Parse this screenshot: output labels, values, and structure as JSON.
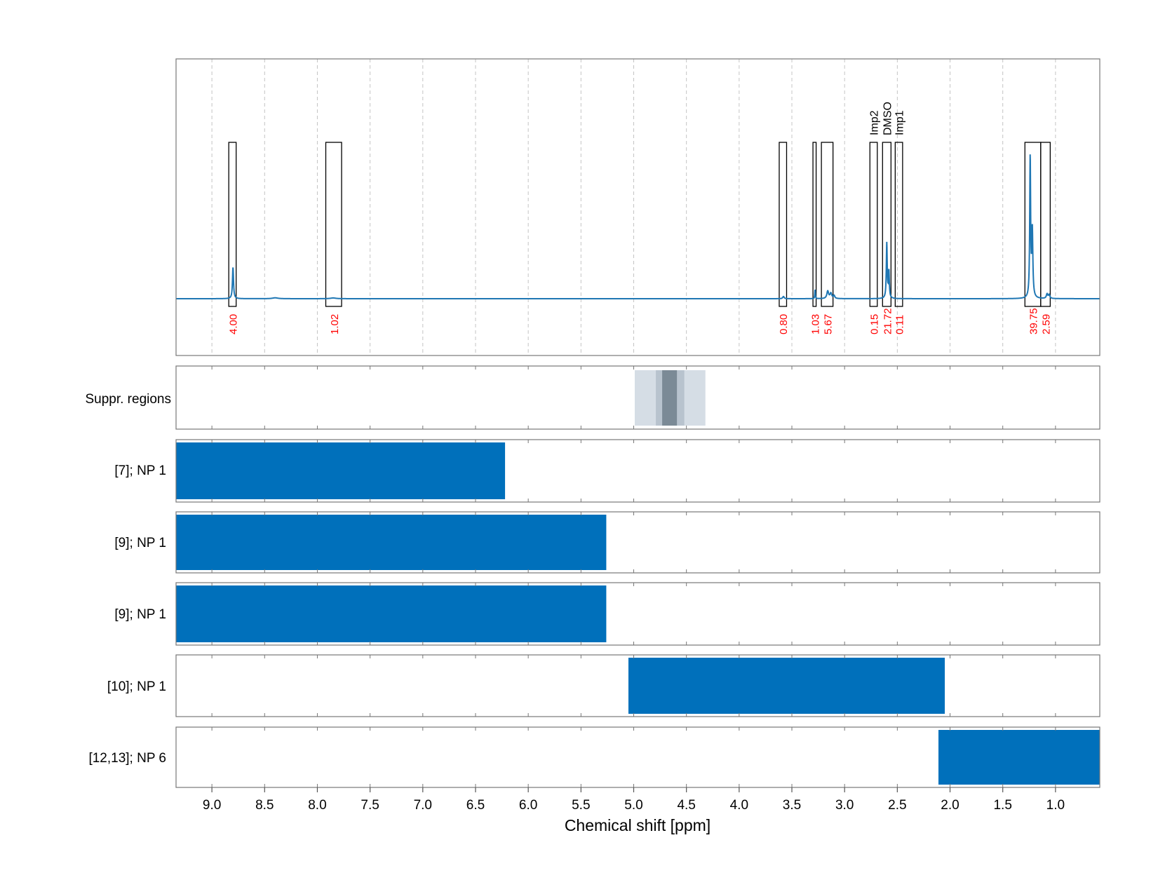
{
  "chart_data": {
    "type": "line",
    "xlabel": "Chemical shift [ppm]",
    "x_axis": {
      "reversed": true,
      "xlim": [
        9.34,
        0.58
      ],
      "ticks": [
        9.0,
        8.5,
        8.0,
        7.5,
        7.0,
        6.5,
        6.0,
        5.5,
        5.0,
        4.5,
        4.0,
        3.5,
        3.0,
        2.5,
        2.0,
        1.5,
        1.0
      ],
      "tick_labels": [
        "9.0",
        "8.5",
        "8.0",
        "7.5",
        "7.0",
        "6.5",
        "6.0",
        "5.5",
        "5.0",
        "4.5",
        "4.0",
        "3.5",
        "3.0",
        "2.5",
        "2.0",
        "1.5",
        "1.0"
      ]
    },
    "spectrum": {
      "color": "#1f77b4",
      "grid": "vertical dashed",
      "peaks": [
        {
          "x": 8.8,
          "height": 0.21,
          "width": 0.006
        },
        {
          "x": 8.4,
          "height": 0.006,
          "width": 0.03
        },
        {
          "x": 7.85,
          "height": 0.005,
          "width": 0.03
        },
        {
          "x": 3.58,
          "height": 0.015,
          "width": 0.008
        },
        {
          "x": 3.28,
          "height": 0.06,
          "width": 0.003
        },
        {
          "x": 3.16,
          "height": 0.05,
          "width": 0.01
        },
        {
          "x": 3.13,
          "height": 0.035,
          "width": 0.01
        },
        {
          "x": 3.1,
          "height": 0.02,
          "width": 0.008
        },
        {
          "x": 2.6,
          "height": 0.37,
          "width": 0.005
        },
        {
          "x": 2.58,
          "height": 0.18,
          "width": 0.005
        },
        {
          "x": 1.24,
          "height": 0.94,
          "width": 0.005
        },
        {
          "x": 1.22,
          "height": 0.45,
          "width": 0.006
        },
        {
          "x": 1.08,
          "height": 0.03,
          "width": 0.008
        },
        {
          "x": 1.06,
          "height": 0.025,
          "width": 0.008
        }
      ],
      "integration_regions": [
        {
          "from": 8.84,
          "to": 8.77,
          "value": "4.00",
          "label": ""
        },
        {
          "from": 7.92,
          "to": 7.77,
          "value": "1.02",
          "label": ""
        },
        {
          "from": 3.62,
          "to": 3.55,
          "value": "0.80",
          "label": ""
        },
        {
          "from": 3.3,
          "to": 3.27,
          "value": "1.03",
          "label": ""
        },
        {
          "from": 3.22,
          "to": 3.11,
          "value": "5.67",
          "label": ""
        },
        {
          "from": 2.76,
          "to": 2.69,
          "value": "0.15",
          "label": "Imp2"
        },
        {
          "from": 2.64,
          "to": 2.56,
          "value": "21.72",
          "label": "DMSO"
        },
        {
          "from": 2.52,
          "to": 2.45,
          "value": "0.11",
          "label": "Imp1"
        },
        {
          "from": 1.29,
          "to": 1.14,
          "value": "39.75",
          "label": ""
        },
        {
          "from": 1.14,
          "to": 1.05,
          "value": "2.59",
          "label": ""
        }
      ]
    },
    "suppression": {
      "label": "Suppr. regions",
      "bands": [
        {
          "from": 4.99,
          "to": 4.32,
          "shade": "#d5dde5"
        },
        {
          "from": 4.79,
          "to": 4.52,
          "shade": "#b8c3ce"
        },
        {
          "from": 4.73,
          "to": 4.59,
          "shade": "#7b8a96"
        }
      ]
    },
    "bar_color": "#0070bb",
    "range_rows": [
      {
        "label": "[7]; NP 1",
        "from": 9.34,
        "to": 6.22
      },
      {
        "label": "[9]; NP 1",
        "from": 9.34,
        "to": 5.26
      },
      {
        "label": "[9]; NP 1",
        "from": 9.34,
        "to": 5.26
      },
      {
        "label": "[10]; NP 1",
        "from": 5.05,
        "to": 2.05
      },
      {
        "label": "[12,13]; NP 6",
        "from": 2.11,
        "to": 0.58
      }
    ]
  }
}
